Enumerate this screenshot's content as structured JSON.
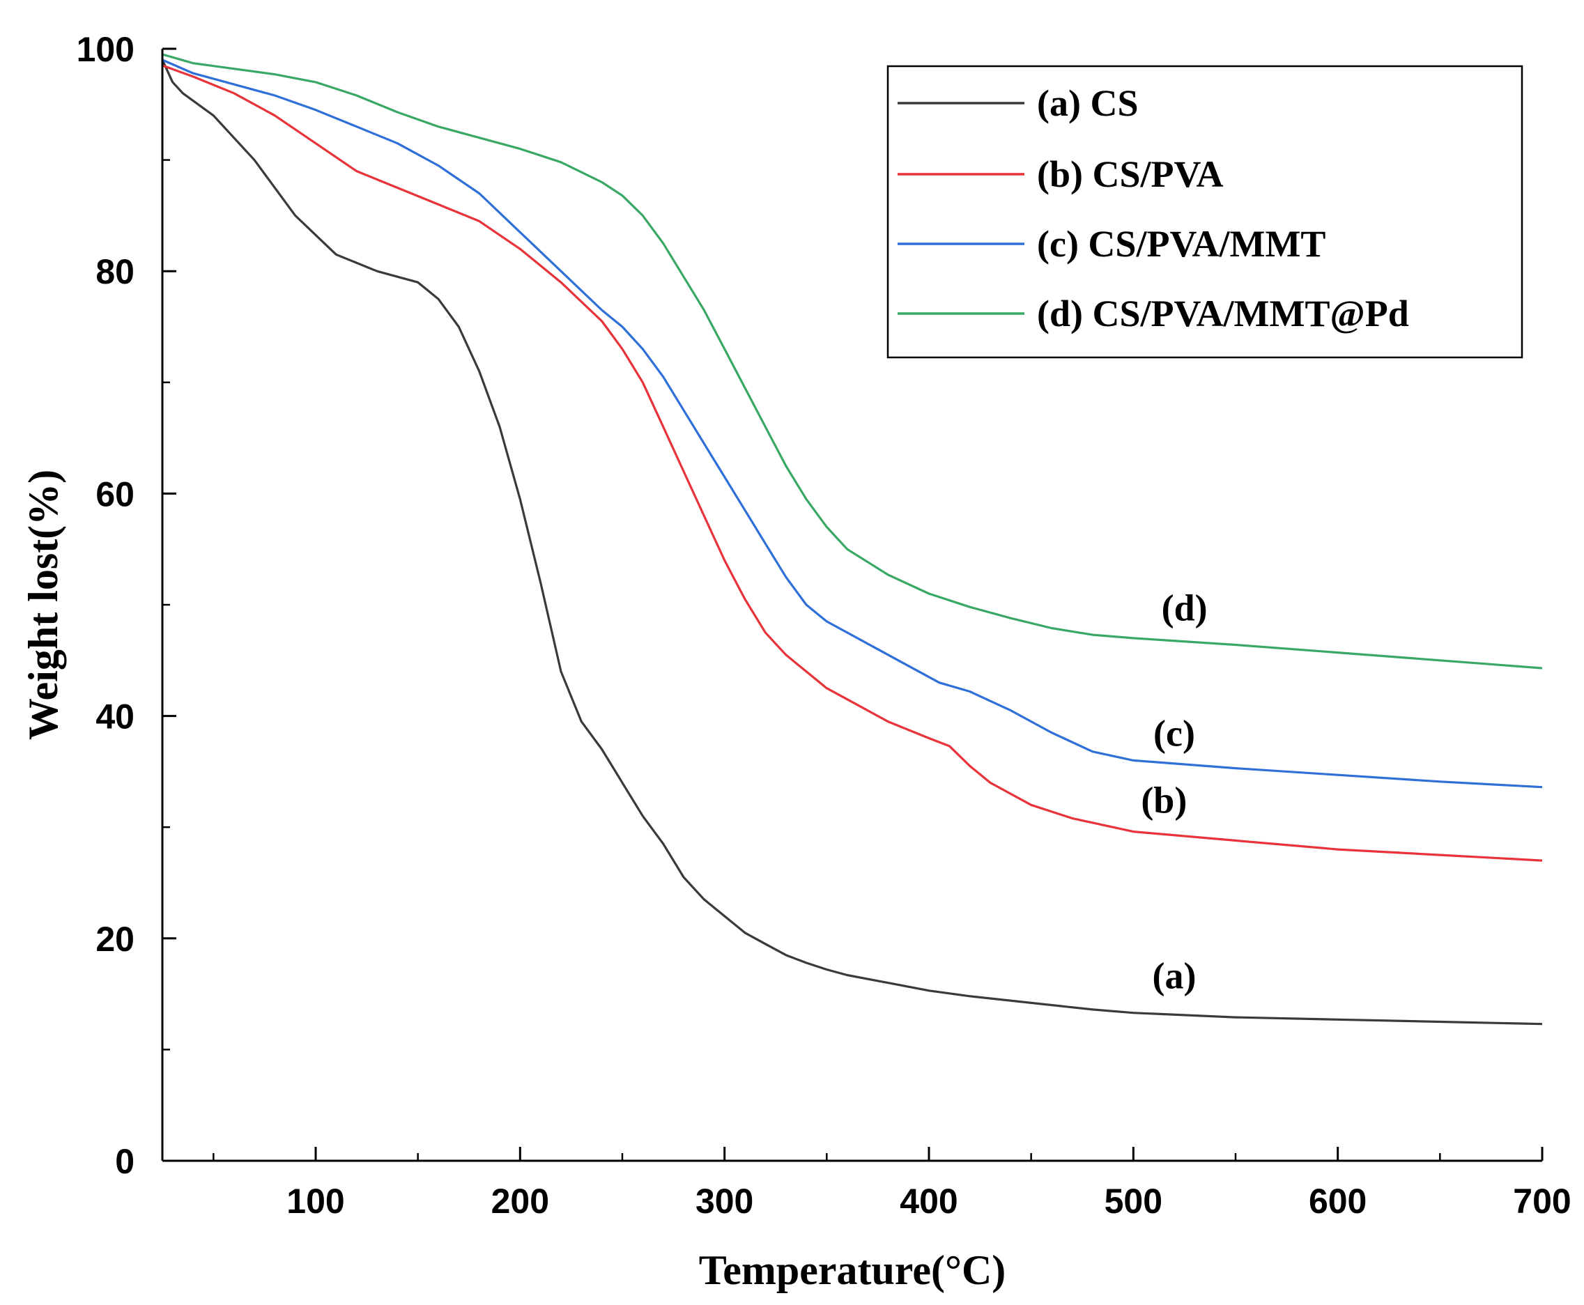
{
  "chart_data": {
    "type": "line",
    "title": "",
    "xlabel": "Temperature(°C)",
    "ylabel": "Weight lost(%)",
    "xlim": [
      25,
      700
    ],
    "ylim": [
      0,
      100
    ],
    "xticks": [
      100,
      200,
      300,
      400,
      500,
      600,
      700
    ],
    "yticks": [
      0,
      20,
      40,
      60,
      80,
      100
    ],
    "xtick_labels": [
      "100",
      "200",
      "300",
      "400",
      "500",
      "600",
      "700"
    ],
    "ytick_labels": [
      "0",
      "20",
      "40",
      "60",
      "80",
      "100"
    ],
    "grid": false,
    "legend_position": "top-right",
    "series": [
      {
        "name": "(a) CS",
        "annotation": "(a)",
        "color": "#3a3a3a",
        "x": [
          25,
          30,
          35,
          50,
          70,
          90,
          110,
          130,
          150,
          160,
          170,
          180,
          190,
          200,
          210,
          220,
          230,
          240,
          250,
          260,
          270,
          280,
          290,
          300,
          310,
          320,
          330,
          340,
          350,
          360,
          380,
          400,
          420,
          450,
          480,
          500,
          550,
          600,
          650,
          700
        ],
        "y": [
          99,
          97,
          96,
          94,
          90,
          85,
          81.5,
          80,
          79,
          77.5,
          75,
          71,
          66,
          59.5,
          52,
          44,
          39.5,
          37,
          34,
          31,
          28.5,
          25.5,
          23.5,
          22,
          20.5,
          19.5,
          18.5,
          17.8,
          17.2,
          16.7,
          16,
          15.3,
          14.8,
          14.2,
          13.6,
          13.3,
          12.9,
          12.7,
          12.5,
          12.3
        ]
      },
      {
        "name": "(b) CS/PVA",
        "annotation": "(b)",
        "color": "#e8333a",
        "x": [
          25,
          40,
          60,
          80,
          100,
          120,
          140,
          160,
          180,
          200,
          220,
          240,
          250,
          260,
          270,
          280,
          290,
          300,
          310,
          320,
          330,
          340,
          350,
          360,
          380,
          400,
          410,
          420,
          430,
          450,
          470,
          500,
          550,
          600,
          650,
          700
        ],
        "y": [
          98.5,
          97.5,
          96,
          94,
          91.5,
          89,
          87.5,
          86,
          84.5,
          82,
          79,
          75.5,
          73,
          70,
          66,
          62,
          58,
          54,
          50.5,
          47.5,
          45.5,
          44,
          42.5,
          41.5,
          39.5,
          38,
          37.3,
          35.5,
          34,
          32,
          30.8,
          29.6,
          28.8,
          28,
          27.5,
          27
        ]
      },
      {
        "name": "(c) CS/PVA/MMT",
        "annotation": "(c)",
        "color": "#2f6fd8",
        "x": [
          25,
          40,
          60,
          80,
          100,
          120,
          140,
          160,
          180,
          200,
          220,
          240,
          250,
          260,
          270,
          280,
          290,
          300,
          310,
          320,
          330,
          340,
          350,
          360,
          380,
          400,
          405,
          420,
          440,
          460,
          480,
          500,
          550,
          600,
          650,
          700
        ],
        "y": [
          99,
          97.8,
          96.8,
          95.8,
          94.5,
          93,
          91.5,
          89.5,
          87,
          83.5,
          80,
          76.5,
          75,
          73,
          70.5,
          67.5,
          64.5,
          61.5,
          58.5,
          55.5,
          52.5,
          50,
          48.5,
          47.5,
          45.5,
          43.5,
          43,
          42.2,
          40.5,
          38.5,
          36.8,
          36,
          35.3,
          34.7,
          34.1,
          33.6
        ]
      },
      {
        "name": "(d) CS/PVA/MMT@Pd",
        "annotation": "(d)",
        "color": "#3aa865",
        "x": [
          25,
          40,
          60,
          80,
          100,
          120,
          140,
          160,
          180,
          200,
          220,
          240,
          250,
          260,
          270,
          280,
          290,
          300,
          310,
          320,
          330,
          340,
          350,
          360,
          380,
          400,
          420,
          440,
          460,
          480,
          500,
          550,
          600,
          650,
          700
        ],
        "y": [
          99.5,
          98.7,
          98.2,
          97.7,
          97,
          95.8,
          94.3,
          93,
          92,
          91,
          89.8,
          88,
          86.8,
          85,
          82.5,
          79.5,
          76.5,
          73,
          69.5,
          66,
          62.5,
          59.5,
          57,
          55,
          52.7,
          51,
          49.8,
          48.8,
          47.9,
          47.3,
          47,
          46.4,
          45.7,
          45,
          44.3
        ]
      }
    ]
  }
}
